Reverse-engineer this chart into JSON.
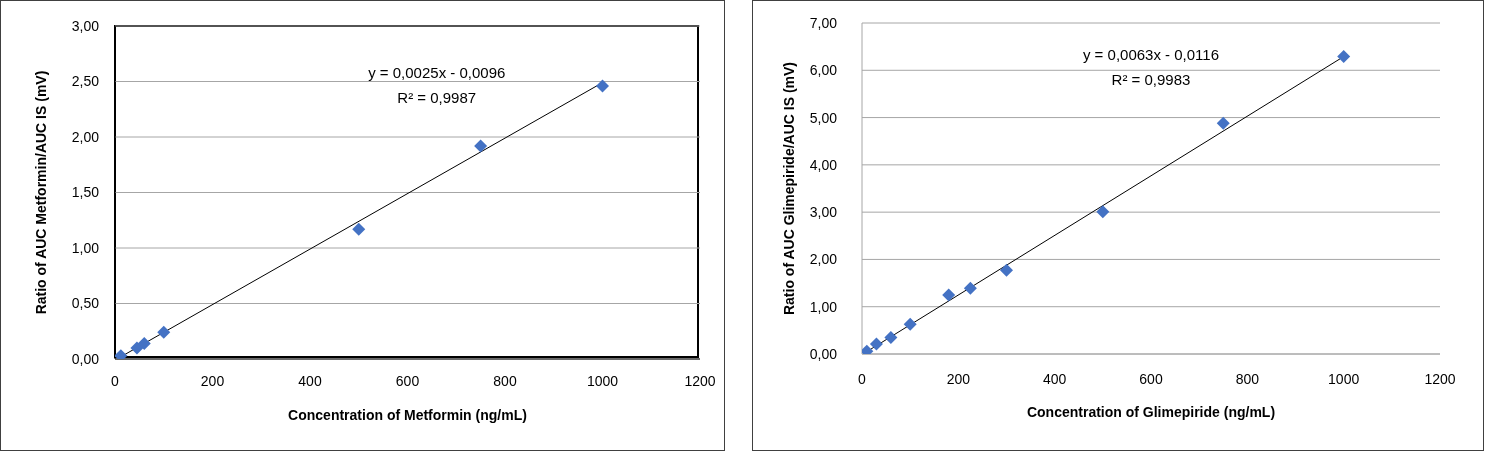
{
  "chart_data": [
    {
      "type": "scatter",
      "xlabel": "Concentration of Metformin (ng/mL)",
      "ylabel": "Ratio of AUC Metformin/AUC IS (mV)",
      "xlim": [
        0,
        1200
      ],
      "xticks": [
        0,
        200,
        400,
        600,
        800,
        1000,
        1200
      ],
      "ylim": [
        0,
        3
      ],
      "yticks": [
        {
          "value": 0,
          "label": "0,00"
        },
        {
          "value": 0.5,
          "label": "0,50"
        },
        {
          "value": 1,
          "label": "1,00"
        },
        {
          "value": 1.5,
          "label": "1,50"
        },
        {
          "value": 2,
          "label": "2,00"
        },
        {
          "value": 2.5,
          "label": "2,50"
        },
        {
          "value": 3,
          "label": "3,00"
        }
      ],
      "grid": "y",
      "marker": "diamond",
      "annotations": [
        "y = 0,0025x - 0,0096",
        "R² = 0,9987"
      ],
      "series": [
        {
          "type": "scatter",
          "color": "#4472c4",
          "x": [
            12,
            45,
            60,
            100,
            500,
            750,
            1000
          ],
          "values": [
            0.03,
            0.1,
            0.14,
            0.24,
            1.17,
            1.92,
            2.46
          ]
        },
        {
          "type": "line",
          "color": "#000000",
          "line_style": "solid",
          "marker": "none",
          "x": [
            12,
            1000
          ],
          "values": [
            0.02,
            2.49
          ]
        }
      ]
    },
    {
      "type": "scatter",
      "xlabel": "Concentration of Glimepiride (ng/mL)",
      "ylabel": "Ratio of AUC Glimepiride/AUC IS (mV)",
      "xlim": [
        0,
        1200
      ],
      "xticks": [
        0,
        200,
        400,
        600,
        800,
        1000,
        1200
      ],
      "ylim": [
        0,
        7
      ],
      "yticks": [
        {
          "value": 0,
          "label": "0,00"
        },
        {
          "value": 1,
          "label": "1,00"
        },
        {
          "value": 2,
          "label": "2,00"
        },
        {
          "value": 3,
          "label": "3,00"
        },
        {
          "value": 4,
          "label": "4,00"
        },
        {
          "value": 5,
          "label": "5,00"
        },
        {
          "value": 6,
          "label": "6,00"
        },
        {
          "value": 7,
          "label": "7,00"
        }
      ],
      "grid": "y",
      "marker": "diamond",
      "annotations": [
        "y = 0,0063x - 0,0116",
        "R² = 0,9983"
      ],
      "series": [
        {
          "type": "scatter",
          "color": "#4472c4",
          "x": [
            10,
            30,
            60,
            100,
            180,
            225,
            300,
            500,
            750,
            1000
          ],
          "values": [
            0.06,
            0.21,
            0.35,
            0.63,
            1.25,
            1.39,
            1.77,
            3.01,
            4.88,
            6.29
          ]
        },
        {
          "type": "line",
          "color": "#000000",
          "line_style": "solid",
          "marker": "none",
          "x": [
            10,
            1000
          ],
          "values": [
            0.05,
            6.29
          ]
        }
      ]
    }
  ]
}
